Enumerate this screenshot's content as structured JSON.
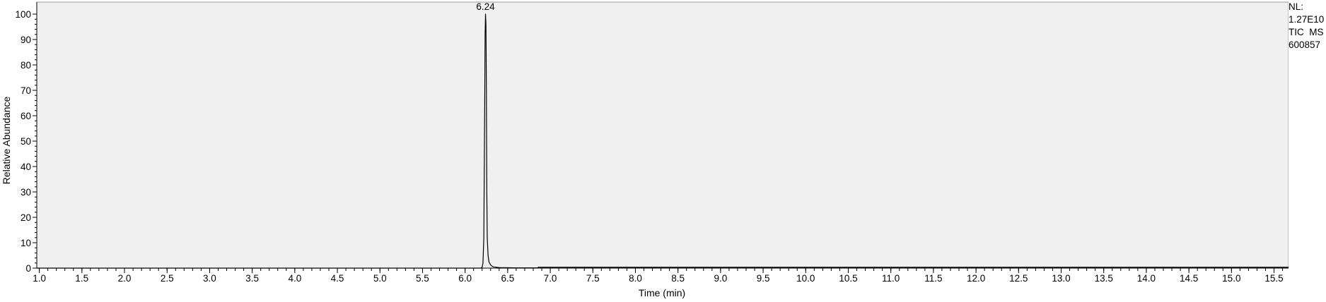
{
  "side_info": {
    "nl_label": "NL:",
    "nl_value": "1.27E10",
    "trace": "TIC  MS",
    "file_id": "600857"
  },
  "chart_data": {
    "type": "line",
    "title": "",
    "xlabel": "Time (min)",
    "ylabel": "Relative Abundance",
    "xlim": [
      0.97,
      15.67
    ],
    "ylim": [
      0,
      100
    ],
    "x_ticks": [
      1.0,
      1.5,
      2.0,
      2.5,
      3.0,
      3.5,
      4.0,
      4.5,
      5.0,
      5.5,
      6.0,
      6.5,
      7.0,
      7.5,
      8.0,
      8.5,
      9.0,
      9.5,
      10.0,
      10.5,
      11.0,
      11.5,
      12.0,
      12.5,
      13.0,
      13.5,
      14.0,
      14.5,
      15.0,
      15.5
    ],
    "x_tick_labels": [
      "1.0",
      "1.5",
      "2.0",
      "2.5",
      "3.0",
      "3.5",
      "4.0",
      "4.5",
      "5.0",
      "5.5",
      "6.0",
      "6.5",
      "7.0",
      "7.5",
      "8.0",
      "8.5",
      "9.0",
      "9.5",
      "10.0",
      "10.5",
      "11.0",
      "11.5",
      "12.0",
      "12.5",
      "13.0",
      "13.5",
      "14.0",
      "14.5",
      "15.0",
      "15.5"
    ],
    "y_ticks": [
      0,
      10,
      20,
      30,
      40,
      50,
      60,
      70,
      80,
      90,
      100
    ],
    "y_tick_labels": [
      "0",
      "10",
      "20",
      "30",
      "40",
      "50",
      "60",
      "70",
      "80",
      "90",
      "100"
    ],
    "grid": false,
    "background": "#f0f0f0",
    "line_color": "#000000",
    "series": [
      {
        "x": [
          0.97,
          6.18,
          6.2,
          6.21,
          6.22,
          6.23,
          6.235,
          6.24,
          6.245,
          6.25,
          6.255,
          6.26,
          6.27,
          6.28,
          6.3,
          6.33,
          6.4,
          6.6,
          6.85,
          6.86,
          15.67
        ],
        "y": [
          0,
          0,
          0.3,
          2,
          12,
          62,
          92,
          100,
          96,
          70,
          30,
          12,
          5,
          2.5,
          1.2,
          0.5,
          0.2,
          0.1,
          0.1,
          0.35,
          0.35
        ]
      }
    ],
    "annotations": [
      {
        "x": 6.24,
        "y": 100,
        "text": "6.24"
      }
    ]
  }
}
